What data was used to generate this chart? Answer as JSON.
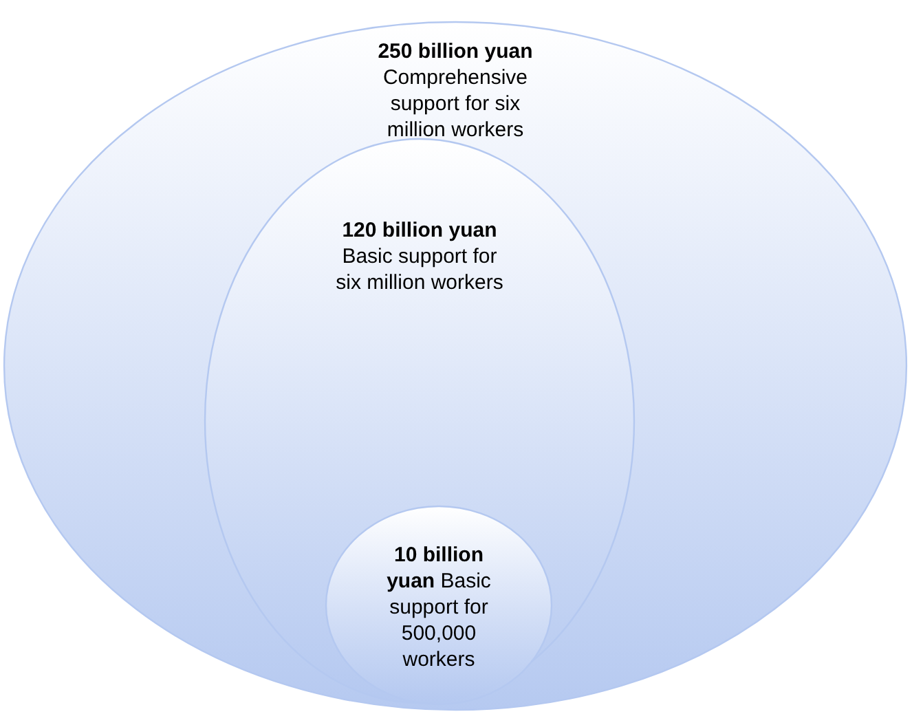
{
  "chart_data": {
    "type": "other",
    "categories": [
      "Comprehensive support for six million workers",
      "Basic support for six million workers",
      "Basic support for 500,000 workers"
    ],
    "values": [
      250,
      120,
      10
    ],
    "value_labels": [
      "250 billion yuan",
      "120 billion yuan",
      "10 billion yuan"
    ],
    "colors": [
      "#b4c8f0",
      "#b4c8f0",
      "#b4c8f0"
    ]
  }
}
